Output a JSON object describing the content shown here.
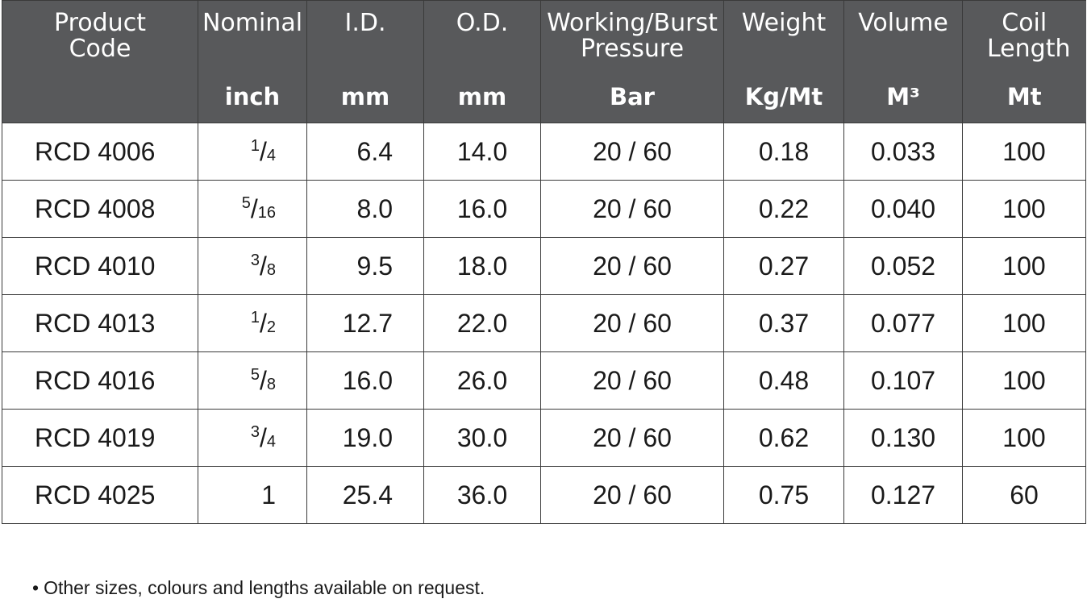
{
  "headers": [
    {
      "title": "Product Code",
      "unit": ""
    },
    {
      "title": "Nominal",
      "unit": "inch"
    },
    {
      "title": "I.D.",
      "unit": "mm"
    },
    {
      "title": "O.D.",
      "unit": "mm"
    },
    {
      "title": "Working/Burst Pressure",
      "unit": "Bar"
    },
    {
      "title": "Weight",
      "unit": "Kg/Mt"
    },
    {
      "title": "Volume",
      "unit": "M³"
    },
    {
      "title": "Coil Length",
      "unit": "Mt"
    }
  ],
  "rows": [
    {
      "code": "RCD 4006",
      "nom_num": "1",
      "nom_den": "4",
      "id": "6.4",
      "od": "14.0",
      "pressure": "20 / 60",
      "weight": "0.18",
      "volume": "0.033",
      "coil": "100"
    },
    {
      "code": "RCD 4008",
      "nom_num": "5",
      "nom_den": "16",
      "id": "8.0",
      "od": "16.0",
      "pressure": "20 / 60",
      "weight": "0.22",
      "volume": "0.040",
      "coil": "100"
    },
    {
      "code": "RCD 4010",
      "nom_num": "3",
      "nom_den": "8",
      "id": "9.5",
      "od": "18.0",
      "pressure": "20 / 60",
      "weight": "0.27",
      "volume": "0.052",
      "coil": "100"
    },
    {
      "code": "RCD 4013",
      "nom_num": "1",
      "nom_den": "2",
      "id": "12.7",
      "od": "22.0",
      "pressure": "20 / 60",
      "weight": "0.37",
      "volume": "0.077",
      "coil": "100"
    },
    {
      "code": "RCD 4016",
      "nom_num": "5",
      "nom_den": "8",
      "id": "16.0",
      "od": "26.0",
      "pressure": "20 / 60",
      "weight": "0.48",
      "volume": "0.107",
      "coil": "100"
    },
    {
      "code": "RCD 4019",
      "nom_num": "3",
      "nom_den": "4",
      "id": "19.0",
      "od": "30.0",
      "pressure": "20 / 60",
      "weight": "0.62",
      "volume": "0.130",
      "coil": "100"
    },
    {
      "code": "RCD 4025",
      "nom_whole": "1",
      "id": "25.4",
      "od": "36.0",
      "pressure": "20 / 60",
      "weight": "0.75",
      "volume": "0.127",
      "coil": "60"
    }
  ],
  "note": "Other sizes, colours and lengths available on request.",
  "bullet": "•",
  "colors": {
    "header_bg": "#58595b",
    "header_text": "#ffffff",
    "border": "#3a3a3a"
  }
}
